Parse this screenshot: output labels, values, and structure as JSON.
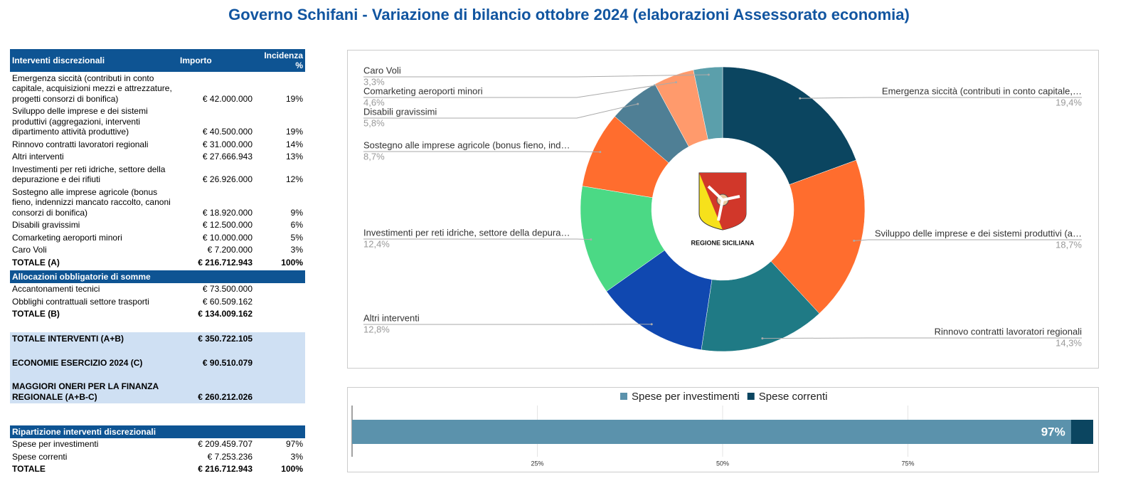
{
  "title": "Governo Schifani - Variazione di bilancio ottobre 2024 (elaborazioni Assessorato economia)",
  "tables": [
    {
      "header": [
        "Interventi discrezionali",
        "Importo",
        "Incidenza %"
      ],
      "rows": [
        [
          "Emergenza siccità (contributi in conto capitale, acquisizioni mezzi e attrezzature, progetti consorzi di bonifica)",
          "€ 42.000.000",
          "19%"
        ],
        [
          "Sviluppo delle imprese e dei sistemi produttivi (aggregazioni, interventi dipartimento attività produttive)",
          "€ 40.500.000",
          "19%"
        ],
        [
          "Rinnovo contratti lavoratori regionali",
          "€ 31.000.000",
          "14%"
        ],
        [
          "Altri interventi",
          "€ 27.666.943",
          "13%"
        ],
        [
          "Investimenti per reti idriche, settore della depurazione e dei rifiuti",
          "€ 26.926.000",
          "12%"
        ],
        [
          "Sostegno alle imprese agricole (bonus fieno, indennizzi mancato raccolto, canoni consorzi di bonifica)",
          "€ 18.920.000",
          "9%"
        ],
        [
          "Disabili gravissimi",
          "€ 12.500.000",
          "6%"
        ],
        [
          "Comarketing aeroporti minori",
          "€ 10.000.000",
          "5%"
        ],
        [
          "Caro Voli",
          "€ 7.200.000",
          "3%"
        ],
        [
          "TOTALE (A)",
          "€ 216.712.943",
          "100%"
        ]
      ]
    },
    {
      "header": [
        "Allocazioni obbligatorie di somme"
      ],
      "rows": [
        [
          "Accantonamenti tecnici",
          "€ 73.500.000"
        ],
        [
          "Obblighi contrattuali settore trasporti",
          "€ 60.509.162"
        ],
        [
          "TOTALE (B)",
          "€ 134.009.162"
        ]
      ]
    },
    {
      "rows": [
        [
          "TOTALE INTERVENTI (A+B)",
          "€ 350.722.105"
        ],
        [
          "ECONOMIE ESERCIZIO 2024 (C)",
          "€ 90.510.079"
        ],
        [
          "MAGGIORI ONERI PER LA FINANZA REGIONALE (A+B-C)",
          "€ 260.212.026"
        ]
      ]
    },
    {
      "header": [
        "Ripartizione interventi discrezionali"
      ],
      "rows": [
        [
          "Spese per investimenti",
          "€ 209.459.707",
          "97%"
        ],
        [
          "Spese correnti",
          "€ 7.253.236",
          "3%"
        ],
        [
          "TOTALE",
          "€ 216.712.943",
          "100%"
        ]
      ]
    }
  ],
  "chart_data": [
    {
      "type": "donut",
      "center_label": "REGIONE SICILIANA",
      "categories": [
        "Emergenza siccità (contributi in conto capitale,…",
        "Sviluppo delle imprese e dei sistemi produttivi (a…",
        "Rinnovo contratti lavoratori regionali",
        "Altri interventi",
        "Investimenti per reti idriche, settore della depura…",
        "Sostegno alle imprese agricole (bonus fieno, ind…",
        "Disabili gravissimi",
        "Comarketing aeroporti minori",
        "Caro Voli"
      ],
      "values": [
        19.4,
        18.7,
        14.3,
        12.8,
        12.4,
        8.7,
        5.8,
        4.6,
        3.3
      ],
      "value_labels": [
        "19,4%",
        "18,7%",
        "14,3%",
        "12,8%",
        "12,4%",
        "8,7%",
        "5,8%",
        "4,6%",
        "3,3%"
      ],
      "colors": [
        "#0b4560",
        "#ff6d2e",
        "#1f7a85",
        "#1048b0",
        "#4bd985",
        "#ff6d2e",
        "#4f7f95",
        "#ff9a6c",
        "#5b9fab"
      ]
    },
    {
      "type": "stacked-bar",
      "orientation": "horizontal",
      "series": [
        {
          "name": "Spese per investimenti",
          "color": "#5b92ac",
          "values": [
            97
          ],
          "value_labels": [
            "97%"
          ]
        },
        {
          "name": "Spese correnti",
          "color": "#0b4560",
          "values": [
            3
          ]
        }
      ],
      "xlim": [
        0,
        100
      ],
      "xticks": [
        {
          "value": 25,
          "label": "25%"
        },
        {
          "value": 50,
          "label": "50%"
        },
        {
          "value": 75,
          "label": "75%"
        }
      ],
      "grid": true,
      "legend": "top"
    }
  ]
}
